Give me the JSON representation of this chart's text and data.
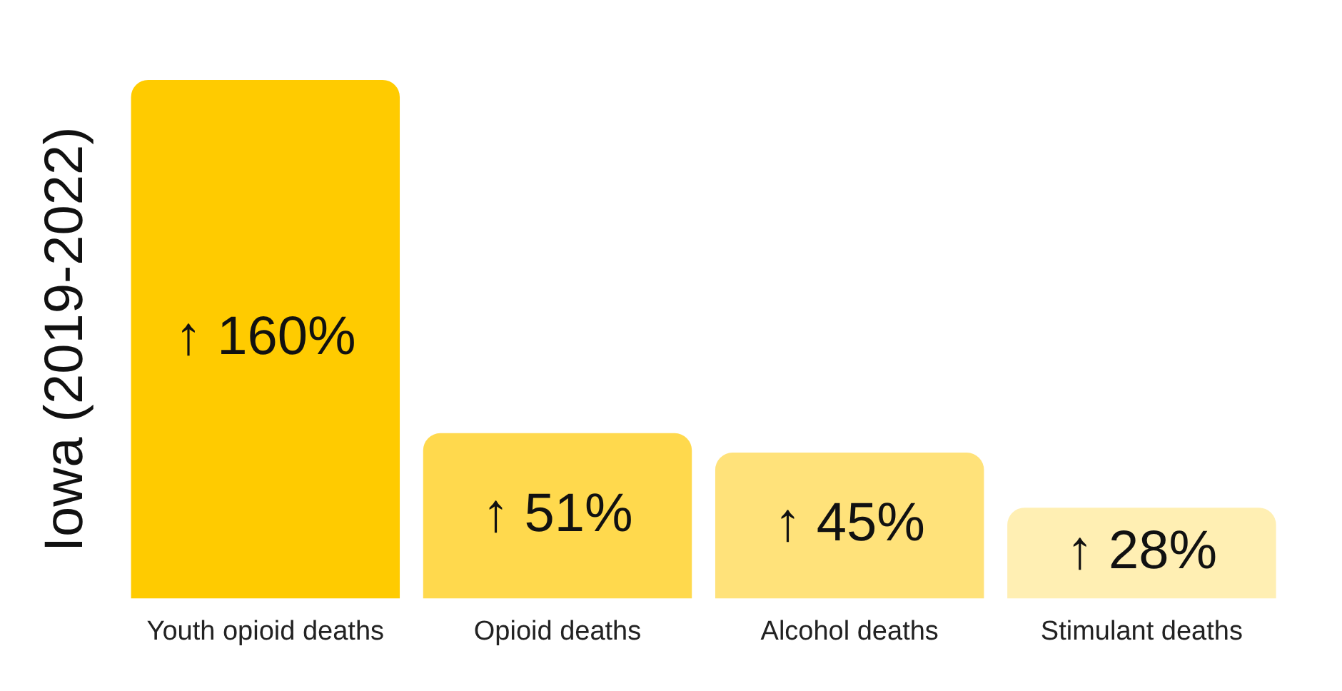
{
  "chart_data": {
    "type": "bar",
    "ylabel": "Iowa (2019-2022)",
    "categories": [
      "Youth opioid deaths",
      "Opioid deaths",
      "Alcohol deaths",
      "Stimulant deaths"
    ],
    "values": [
      160,
      51,
      45,
      28
    ],
    "colors": [
      "#ffcb00",
      "#ffd94d",
      "#ffe27a",
      "#ffefb3"
    ],
    "value_labels": [
      "↑ 160%",
      "↑ 51%",
      "↑ 45%",
      "↑ 28%"
    ],
    "grid": false,
    "legend": false
  }
}
